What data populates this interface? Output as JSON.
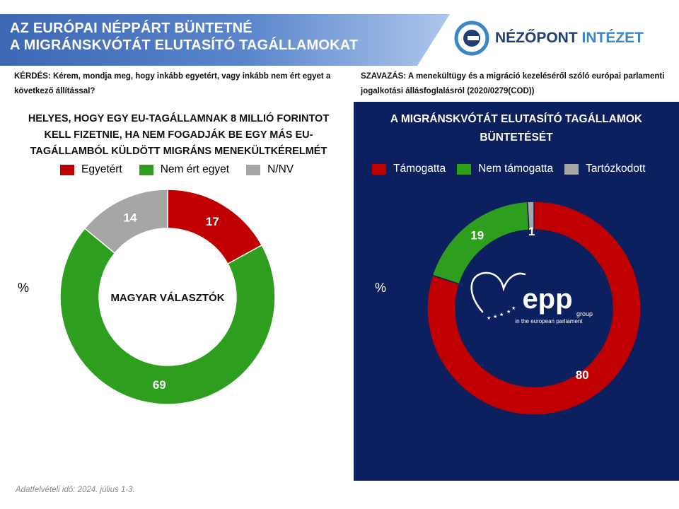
{
  "header": {
    "title_line1": "AZ EURÓPAI NÉPPÁRT BÜNTETNÉ",
    "title_line2": "A MIGRÁNSKVÓTÁT ELUTASÍTÓ TAGÁLLAMOKAT",
    "logo_text_a": "NÉZŐPONT",
    "logo_text_b": "INTÉZET"
  },
  "question": "KÉRDÉS: Kérem, mondja meg, hogy inkább egyetért, vagy inkább nem ért egyet a következő állítással?",
  "vote": "SZAVAZÁS:  A menekültügy és a migráció kezeléséről szóló európai parlamenti jogalkotási állásfoglalásról (2020/0279(COD))",
  "left_title": "HELYES, HOGY EGY EU-TAGÁLLAMNAK 8 MILLIÓ FORINTOT KELL FIZETNIE, HA NEM FOGADJÁK BE EGY MÁS EU-TAGÁLLAMBÓL KÜLDÖTT MIGRÁNS MENEKÜLTKÉRELMÉT",
  "right_title": "A MIGRÁNSKVÓTÁT  ELUTASÍTÓ TAGÁLLAMOK BÜNTETÉSÉT",
  "footnote": "Adatfelvételi idő: 2024. július 1-3.",
  "epp_logo": {
    "word": "epp",
    "sub1": "group",
    "sub2": "in the european parliament"
  },
  "colors": {
    "red": "#c00000",
    "green": "#2e9e1f",
    "gray": "#a6a6a6",
    "navy": "#0c2060"
  },
  "chart_data": [
    {
      "type": "pie",
      "title": "HELYES, HOGY EGY EU-TAGÁLLAMNAK 8 MILLIÓ FORINTOT KELL FIZETNIE, HA NEM FOGADJÁK BE EGY MÁS EU-TAGÁLLAMBÓL KÜLDÖTT MIGRÁNS MENEKÜLTKÉRELMÉT",
      "center_label": "MAGYAR  VÁLASZTÓK",
      "unit": "%",
      "categories": [
        "Egyetért",
        "Nem ért egyet",
        "N/NV"
      ],
      "values": [
        17,
        69,
        14
      ],
      "colors": [
        "#c00000",
        "#2e9e1f",
        "#a6a6a6"
      ],
      "legend_position": "top"
    },
    {
      "type": "pie",
      "title": "A MIGRÁNSKVÓTÁT  ELUTASÍTÓ TAGÁLLAMOK BÜNTETÉSÉT",
      "unit": "%",
      "categories": [
        "Támogatta",
        "Nem támogatta",
        "Tartózkodott"
      ],
      "values": [
        80,
        19,
        1
      ],
      "colors": [
        "#c00000",
        "#2e9e1f",
        "#a6a6a6"
      ],
      "legend_position": "top"
    }
  ]
}
